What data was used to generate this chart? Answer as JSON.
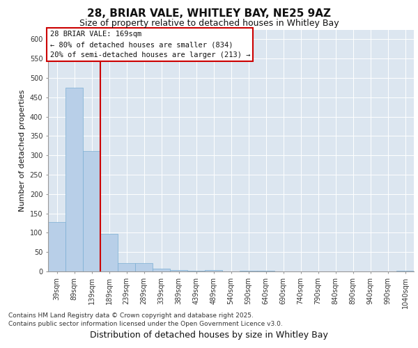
{
  "title1": "28, BRIAR VALE, WHITLEY BAY, NE25 9AZ",
  "title2": "Size of property relative to detached houses in Whitley Bay",
  "xlabel": "Distribution of detached houses by size in Whitley Bay",
  "ylabel": "Number of detached properties",
  "bins": [
    "39sqm",
    "89sqm",
    "139sqm",
    "189sqm",
    "239sqm",
    "289sqm",
    "339sqm",
    "389sqm",
    "439sqm",
    "489sqm",
    "540sqm",
    "590sqm",
    "640sqm",
    "690sqm",
    "740sqm",
    "790sqm",
    "840sqm",
    "890sqm",
    "940sqm",
    "990sqm",
    "1040sqm"
  ],
  "values": [
    128,
    475,
    312,
    98,
    22,
    22,
    8,
    3,
    1,
    3,
    0,
    1,
    1,
    0,
    0,
    0,
    0,
    0,
    0,
    0,
    2
  ],
  "bar_color": "#b8cfe8",
  "bar_edge_color": "#7aaed4",
  "vline_color": "#cc0000",
  "annotation_text": "28 BRIAR VALE: 169sqm\n← 80% of detached houses are smaller (834)\n20% of semi-detached houses are larger (213) →",
  "annotation_box_color": "#ffffff",
  "annotation_box_edge": "#cc0000",
  "ylim": [
    0,
    625
  ],
  "yticks": [
    0,
    50,
    100,
    150,
    200,
    250,
    300,
    350,
    400,
    450,
    500,
    550,
    600
  ],
  "background_color": "#dce6f0",
  "footer_line1": "Contains HM Land Registry data © Crown copyright and database right 2025.",
  "footer_line2": "Contains public sector information licensed under the Open Government Licence v3.0.",
  "title1_fontsize": 11,
  "title2_fontsize": 9,
  "xlabel_fontsize": 9,
  "ylabel_fontsize": 8,
  "tick_fontsize": 7,
  "annotation_fontsize": 7.5,
  "footer_fontsize": 6.5
}
